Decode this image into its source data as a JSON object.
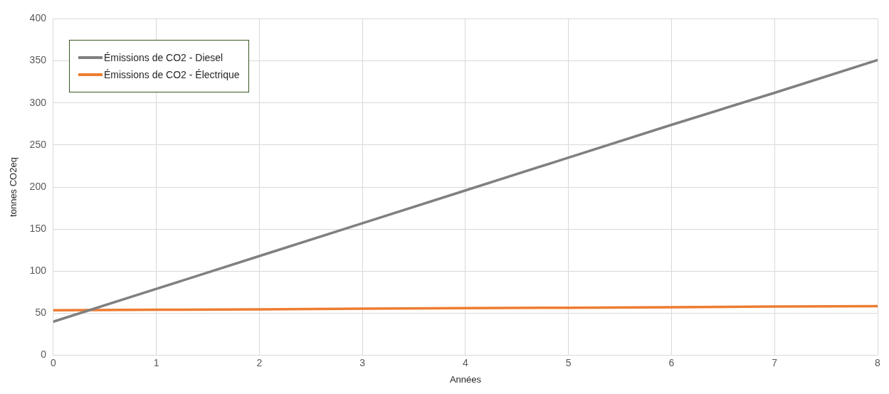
{
  "chart_data": {
    "type": "line",
    "xlabel": "Années",
    "ylabel": "tonnes CO2eq",
    "x": [
      0,
      1,
      2,
      3,
      4,
      5,
      6,
      7,
      8
    ],
    "series": [
      {
        "name": "Émissions de CO2 - Diesel",
        "color": "#808080",
        "values": [
          40,
          79,
          118,
          157,
          196,
          235,
          274,
          312,
          351
        ]
      },
      {
        "name": "Émissions de CO2 - Électrique",
        "color": "#ed7d31",
        "values": [
          53.5,
          54.1,
          54.7,
          55.4,
          56,
          56.6,
          57.2,
          57.9,
          58.5
        ]
      }
    ],
    "xlim": [
      0,
      8
    ],
    "xticks": [
      0,
      1,
      2,
      3,
      4,
      5,
      6,
      7,
      8
    ],
    "ylim": [
      0,
      400
    ],
    "yticks": [
      0,
      50,
      100,
      150,
      200,
      250,
      300,
      350,
      400
    ],
    "grid": true,
    "legend": "top left",
    "marker": "none",
    "line_style": "solid"
  }
}
